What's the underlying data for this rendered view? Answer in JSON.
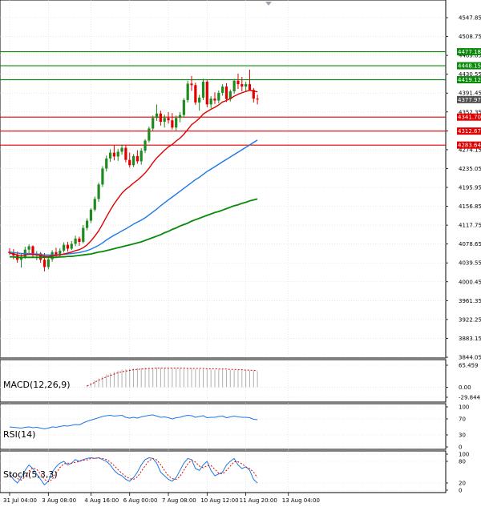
{
  "colors": {
    "up": "#1f8a1f",
    "down": "#e00000",
    "ma_fast": "#e00000",
    "ma_mid": "#1e78e6",
    "ma_slow": "#0a8a0a",
    "macd_signal": "#e00000",
    "macd_hist": "#b0b0b0",
    "rsi": "#1e78e6",
    "stoch_main": "#1e78e6",
    "stoch_signal": "#e00000",
    "resistance": "#0a8a0a",
    "support": "#e00000",
    "price_tag": "#505050"
  },
  "chart_data": [
    {
      "type": "candlestick",
      "panel": "price",
      "ylim": [
        3844.05,
        4547.85
      ],
      "y_ticks": [
        "4547.85",
        "4508.75",
        "4469.65",
        "4430.55",
        "4391.45",
        "4352.35",
        "4313.25",
        "4274.15",
        "4235.05",
        "4195.95",
        "4156.85",
        "4117.75",
        "4078.65",
        "4039.55",
        "4000.45",
        "3961.35",
        "3922.25",
        "3883.15",
        "3844.05"
      ],
      "x_tick_labels": [
        "31 Jul 04:00",
        "3 Aug 08:00",
        "4 Aug 16:00",
        "6 Aug 00:00",
        "7 Aug 08:00",
        "10 Aug 12:00",
        "11 Aug 20:00",
        "13 Aug 04:00"
      ],
      "x_tick_index": [
        0,
        10,
        21,
        31,
        41,
        51,
        61,
        72
      ],
      "candles": [
        [
          4063,
          4070,
          4056,
          4060
        ],
        [
          4060,
          4068,
          4047,
          4055
        ],
        [
          4055,
          4063,
          4040,
          4046
        ],
        [
          4046,
          4058,
          4030,
          4052
        ],
        [
          4052,
          4073,
          4048,
          4067
        ],
        [
          4067,
          4078,
          4060,
          4074
        ],
        [
          4074,
          4076,
          4052,
          4056
        ],
        [
          4056,
          4064,
          4045,
          4059
        ],
        [
          4059,
          4062,
          4040,
          4046
        ],
        [
          4046,
          4060,
          4022,
          4031
        ],
        [
          4031,
          4052,
          4026,
          4047
        ],
        [
          4047,
          4066,
          4042,
          4062
        ],
        [
          4062,
          4071,
          4050,
          4056
        ],
        [
          4056,
          4070,
          4050,
          4065
        ],
        [
          4065,
          4082,
          4061,
          4077
        ],
        [
          4077,
          4083,
          4063,
          4069
        ],
        [
          4069,
          4085,
          4066,
          4079
        ],
        [
          4079,
          4096,
          4074,
          4090
        ],
        [
          4090,
          4094,
          4075,
          4083
        ],
        [
          4083,
          4118,
          4080,
          4112
        ],
        [
          4112,
          4132,
          4107,
          4127
        ],
        [
          4127,
          4153,
          4122,
          4150
        ],
        [
          4150,
          4177,
          4146,
          4172
        ],
        [
          4172,
          4206,
          4166,
          4202
        ],
        [
          4202,
          4240,
          4197,
          4235
        ],
        [
          4235,
          4262,
          4229,
          4256
        ],
        [
          4256,
          4275,
          4249,
          4268
        ],
        [
          4268,
          4283,
          4252,
          4260
        ],
        [
          4260,
          4276,
          4251,
          4270
        ],
        [
          4270,
          4285,
          4264,
          4278
        ],
        [
          4278,
          4283,
          4248,
          4253
        ],
        [
          4253,
          4268,
          4237,
          4242
        ],
        [
          4242,
          4265,
          4238,
          4261
        ],
        [
          4261,
          4273,
          4245,
          4250
        ],
        [
          4250,
          4277,
          4243,
          4272
        ],
        [
          4272,
          4296,
          4267,
          4293
        ],
        [
          4293,
          4322,
          4289,
          4318
        ],
        [
          4318,
          4345,
          4313,
          4340
        ],
        [
          4340,
          4368,
          4334,
          4349
        ],
        [
          4349,
          4355,
          4324,
          4332
        ],
        [
          4332,
          4347,
          4320,
          4340
        ],
        [
          4340,
          4352,
          4328,
          4335
        ],
        [
          4335,
          4350,
          4316,
          4320
        ],
        [
          4320,
          4345,
          4312,
          4340
        ],
        [
          4340,
          4352,
          4331,
          4346
        ],
        [
          4346,
          4381,
          4341,
          4377
        ],
        [
          4377,
          4417,
          4372,
          4411
        ],
        [
          4411,
          4427,
          4396,
          4408
        ],
        [
          4408,
          4413,
          4367,
          4372
        ],
        [
          4372,
          4388,
          4355,
          4382
        ],
        [
          4382,
          4421,
          4377,
          4415
        ],
        [
          4415,
          4418,
          4362,
          4368
        ],
        [
          4368,
          4385,
          4360,
          4380
        ],
        [
          4380,
          4393,
          4369,
          4376
        ],
        [
          4376,
          4397,
          4370,
          4392
        ],
        [
          4392,
          4410,
          4386,
          4405
        ],
        [
          4405,
          4412,
          4373,
          4379
        ],
        [
          4379,
          4399,
          4374,
          4395
        ],
        [
          4395,
          4421,
          4390,
          4417
        ],
        [
          4417,
          4432,
          4400,
          4410
        ],
        [
          4410,
          4425,
          4395,
          4405
        ],
        [
          4405,
          4415,
          4394,
          4410
        ],
        [
          4410,
          4440,
          4400,
          4398
        ],
        [
          4398,
          4402,
          4372,
          4380
        ],
        [
          4380,
          4388,
          4368,
          4378
        ]
      ],
      "ma_fast": [
        4060,
        4058,
        4056,
        4055,
        4056,
        4057,
        4057,
        4056,
        4055,
        4053,
        4053,
        4054,
        4055,
        4056,
        4058,
        4060,
        4062,
        4065,
        4067,
        4071,
        4077,
        4085,
        4095,
        4106,
        4120,
        4135,
        4149,
        4162,
        4173,
        4184,
        4192,
        4198,
        4205,
        4211,
        4218,
        4226,
        4236,
        4247,
        4257,
        4265,
        4273,
        4280,
        4285,
        4292,
        4298,
        4306,
        4316,
        4326,
        4332,
        4339,
        4348,
        4353,
        4358,
        4362,
        4367,
        4373,
        4376,
        4380,
        4385,
        4389,
        4392,
        4395,
        4397,
        4396,
        4394
      ],
      "ma_mid": [
        4062,
        4061,
        4060,
        4059,
        4059,
        4059,
        4058,
        4058,
        4057,
        4056,
        4056,
        4056,
        4056,
        4057,
        4057,
        4058,
        4059,
        4060,
        4061,
        4063,
        4065,
        4068,
        4072,
        4076,
        4081,
        4087,
        4092,
        4097,
        4101,
        4106,
        4110,
        4115,
        4120,
        4124,
        4128,
        4133,
        4139,
        4145,
        4151,
        4158,
        4164,
        4170,
        4176,
        4182,
        4188,
        4194,
        4200,
        4206,
        4212,
        4217,
        4223,
        4229,
        4234,
        4239,
        4244,
        4249,
        4254,
        4259,
        4264,
        4269,
        4274,
        4279,
        4284,
        4289,
        4294
      ],
      "ma_slow": [
        4052,
        4052,
        4051,
        4051,
        4051,
        4051,
        4051,
        4051,
        4051,
        4051,
        4051,
        4051,
        4051,
        4052,
        4052,
        4053,
        4053,
        4054,
        4055,
        4056,
        4057,
        4058,
        4060,
        4062,
        4063,
        4065,
        4067,
        4069,
        4071,
        4073,
        4075,
        4077,
        4079,
        4081,
        4083,
        4086,
        4089,
        4092,
        4095,
        4098,
        4102,
        4105,
        4109,
        4112,
        4116,
        4119,
        4122,
        4126,
        4129,
        4132,
        4135,
        4138,
        4141,
        4144,
        4146,
        4149,
        4152,
        4155,
        4158,
        4160,
        4163,
        4165,
        4168,
        4170,
        4172
      ],
      "resistance_levels": [
        {
          "value": 4477.18,
          "label": "4477.18"
        },
        {
          "value": 4448.15,
          "label": "4448.15"
        },
        {
          "value": 4419.12,
          "label": "4419.12"
        }
      ],
      "support_levels": [
        {
          "value": 4341.7,
          "label": "4341.70"
        },
        {
          "value": 4312.67,
          "label": "4312.67"
        },
        {
          "value": 4283.64,
          "label": "4283.64"
        }
      ],
      "current_price": {
        "value": 4377.97,
        "label": "4377.97"
      }
    },
    {
      "type": "bar",
      "panel": "macd",
      "title": "MACD(12,26,9)",
      "ylim": [
        -29.844,
        65.459
      ],
      "y_ticks": [
        "65.459",
        "0.00",
        "-29.844"
      ],
      "hist_start_index": 20,
      "histogram": [
        6,
        13,
        20,
        26,
        32,
        38,
        42,
        46,
        49,
        52,
        54,
        55,
        56,
        57,
        57,
        58,
        58,
        58,
        58,
        57,
        57,
        57,
        56,
        56,
        56,
        55,
        55,
        55,
        54,
        54,
        53,
        53,
        53,
        52,
        52,
        52,
        51,
        51,
        51,
        50,
        50,
        50,
        49,
        48,
        46
      ],
      "signal": [
        4,
        9,
        15,
        21,
        26,
        31,
        35,
        39,
        43,
        46,
        48,
        50,
        52,
        53,
        54,
        55,
        56,
        56,
        57,
        57,
        57,
        57,
        57,
        57,
        57,
        57,
        56,
        56,
        56,
        56,
        56,
        55,
        55,
        55,
        54,
        54,
        54,
        53,
        53,
        52,
        52,
        51,
        51,
        50,
        49
      ]
    },
    {
      "type": "line",
      "panel": "rsi",
      "title": "RSI(14)",
      "ylim": [
        0,
        100
      ],
      "y_ticks": [
        "100",
        "70",
        "30",
        "0"
      ],
      "values": [
        50,
        49,
        48,
        47,
        49,
        50,
        48,
        49,
        47,
        45,
        47,
        50,
        49,
        51,
        53,
        52,
        54,
        56,
        55,
        60,
        64,
        67,
        70,
        73,
        76,
        78,
        79,
        77,
        78,
        79,
        74,
        72,
        74,
        72,
        75,
        77,
        79,
        80,
        77,
        74,
        75,
        73,
        70,
        73,
        74,
        77,
        79,
        78,
        74,
        76,
        78,
        73,
        74,
        74,
        76,
        77,
        73,
        75,
        77,
        75,
        74,
        74,
        73,
        69,
        68
      ]
    },
    {
      "type": "line",
      "panel": "stoch",
      "title": "Stoch(5,3,3)",
      "ylim": [
        0,
        100
      ],
      "y_ticks": [
        "100",
        "80",
        "20",
        "0"
      ],
      "main": [
        45,
        30,
        20,
        35,
        55,
        70,
        60,
        45,
        30,
        15,
        25,
        50,
        65,
        75,
        80,
        70,
        75,
        85,
        80,
        85,
        88,
        90,
        88,
        90,
        85,
        80,
        70,
        55,
        45,
        40,
        30,
        25,
        35,
        50,
        70,
        85,
        90,
        88,
        75,
        50,
        40,
        30,
        25,
        35,
        55,
        75,
        88,
        85,
        60,
        55,
        70,
        80,
        55,
        40,
        45,
        50,
        70,
        80,
        88,
        70,
        60,
        65,
        55,
        30,
        20
      ],
      "signal": [
        48,
        40,
        32,
        28,
        37,
        53,
        62,
        58,
        45,
        30,
        23,
        30,
        47,
        63,
        73,
        75,
        75,
        77,
        80,
        83,
        84,
        88,
        89,
        89,
        88,
        85,
        78,
        68,
        57,
        47,
        38,
        32,
        30,
        37,
        52,
        68,
        82,
        88,
        84,
        71,
        55,
        40,
        32,
        30,
        38,
        55,
        73,
        83,
        78,
        67,
        62,
        68,
        68,
        58,
        47,
        45,
        55,
        67,
        79,
        79,
        73,
        65,
        60,
        50,
        35
      ]
    }
  ]
}
